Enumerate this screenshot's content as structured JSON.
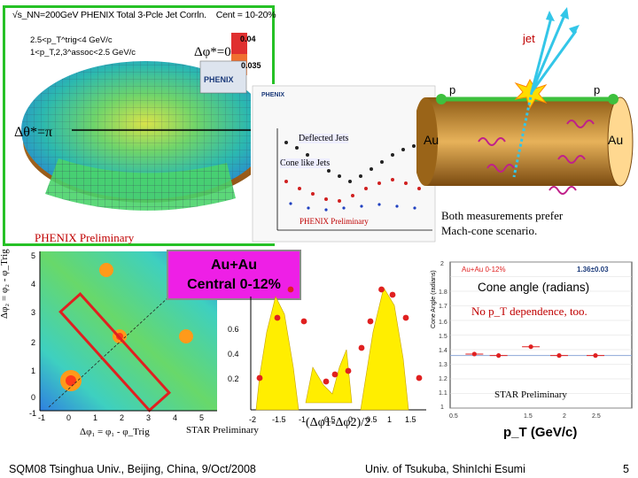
{
  "header_text": "√s_NN=200GeV PHENIX Total 3-Pcle Jet Corrln.",
  "centrality": "Cent = 10-20%",
  "cut1": "2.5<p_T^trig<4 GeV/c",
  "cut2": "1<p_T,2,3^assoc<2.5 GeV/c",
  "dphi_star": "Δφ*=0",
  "dtheta_star": "Δθ*=π",
  "colorbar_top": "0.04",
  "colorbar_bottom": "0.035",
  "phenix_logo": "PHENIX",
  "deflected_jets": "Deflected Jets",
  "cone_like_jets": "Cone like Jets",
  "phenix_prelim_left": "PHENIX Preliminary",
  "phenix_prelim_mid": "PHENIX Preliminary",
  "jet": "jet",
  "p_left": "p",
  "p_right": "p",
  "au_left": "Au",
  "au_right": "Au",
  "both_measurements_line1": "Both measurements prefer",
  "both_measurements_line2": "Mach-cone scenario.",
  "auau_line1": "Au+Au",
  "auau_line2": "Central 0-12%",
  "heat_ylabel": "Δφ₂ = φ₂ - φ_Trig",
  "heat_xlabel": "Δφ₁ = φ₁ - φ_Trig",
  "star_prelim_left": "STAR Preliminary",
  "dphi_axis_label": "(Δφ1-Δφ2)/2",
  "cone_angle_label": "Cone angle (radians)",
  "no_pt_dependence": "No p_T dependence, too.",
  "cone_legend": "Au+Au 0-12%",
  "cone_value": "1.36±0.03",
  "star_prelim_right": "STAR Preliminary",
  "pt_label": "p_T (GeV/c)",
  "footer_left": "SQM08 Tsinghua Univ., Beijing, China, 9/Oct/2008",
  "footer_mid": "Univ. of Tsukuba, ShinIchi Esumi",
  "page_number": "5",
  "colors": {
    "border_green": "#26c126",
    "magenta": "#ee1fe6",
    "red_label": "#c00000",
    "cone_points": "#e02020",
    "band_yellow": "#ffee00"
  },
  "chart_data": [
    {
      "type": "scatter",
      "title": "Cone angle (radians)",
      "legend": [
        "Au+Au 0-12%"
      ],
      "annotation": "1.36±0.03",
      "x": [
        1.1,
        1.7,
        2.5,
        3.2,
        4.1
      ],
      "values": [
        1.37,
        1.36,
        1.42,
        1.36,
        1.36
      ],
      "xlim": [
        0.5,
        5.0
      ],
      "ylim": [
        1.0,
        2.0
      ],
      "xticks": [
        "0.5",
        "1",
        "1.5",
        "2",
        "2.5",
        "3",
        "3.5",
        "4",
        "4.5",
        "5"
      ],
      "yticks": [
        "1",
        "1.1",
        "1.2",
        "1.3",
        "1.4",
        "1.5",
        "1.6",
        "1.7",
        "1.8",
        "1.9",
        "2"
      ]
    },
    {
      "type": "scatter",
      "title": "",
      "xticks": [
        "-2",
        "-1.5",
        "-1",
        "-0.5",
        "0",
        "0.5",
        "1",
        "1.5"
      ],
      "yticks": [
        "0.2",
        "0.4",
        "0.6"
      ],
      "x": [
        -2.0,
        -1.6,
        -1.3,
        -1.0,
        -0.5,
        -0.3,
        0.0,
        0.3,
        0.5,
        0.75,
        1.0,
        1.3,
        1.6
      ],
      "values": [
        0.18,
        0.52,
        0.68,
        0.5,
        0.16,
        0.2,
        0.22,
        0.35,
        0.5,
        0.68,
        0.65,
        0.52,
        0.18
      ]
    }
  ]
}
